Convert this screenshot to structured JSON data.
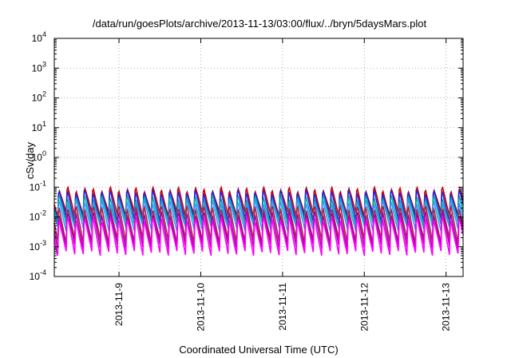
{
  "chart_data": {
    "type": "line",
    "title": "/data/run/goesPlots/archive/2013-11-13/03:00/flux/../bryn/5daysMars.plot",
    "xlabel": "Coordinated Universal Time (UTC)",
    "ylabel": "cSv/day",
    "yscale": "log",
    "ylim": [
      0.0001,
      10000
    ],
    "xlim": [
      "2013-11-08T05:00",
      "2013-11-13T05:00"
    ],
    "grid": true,
    "y_ticks": [
      {
        "value": 0.0001,
        "base": "10",
        "exp": "-4"
      },
      {
        "value": 0.001,
        "base": "10",
        "exp": "-3"
      },
      {
        "value": 0.01,
        "base": "10",
        "exp": "-2"
      },
      {
        "value": 0.1,
        "base": "10",
        "exp": "-1"
      },
      {
        "value": 1,
        "base": "10",
        "exp": "0"
      },
      {
        "value": 10,
        "base": "10",
        "exp": "1"
      },
      {
        "value": 100,
        "base": "10",
        "exp": "2"
      },
      {
        "value": 1000,
        "base": "10",
        "exp": "3"
      },
      {
        "value": 10000,
        "base": "10",
        "exp": "4"
      }
    ],
    "x_ticks": [
      "2013-11-9",
      "2013-11-10",
      "2013-11-11",
      "2013-11-12",
      "2013-11-13"
    ],
    "period_hours": 2.5,
    "series": [
      {
        "color": "#cc0000",
        "peak": 0.1,
        "trough": 0.012
      },
      {
        "color": "#2222dd",
        "peak": 0.08,
        "trough": 0.008
      },
      {
        "color": "#00aaaa",
        "peak": 0.05,
        "trough": 0.006
      },
      {
        "color": "#3399ff",
        "peak": 0.035,
        "trough": 0.004
      },
      {
        "color": "#aa2244",
        "peak": 0.025,
        "trough": 0.0015
      },
      {
        "color": "#aa00aa",
        "peak": 0.015,
        "trough": 0.001
      },
      {
        "color": "#ff00ff",
        "peak": 0.01,
        "trough": 0.0006
      }
    ]
  }
}
